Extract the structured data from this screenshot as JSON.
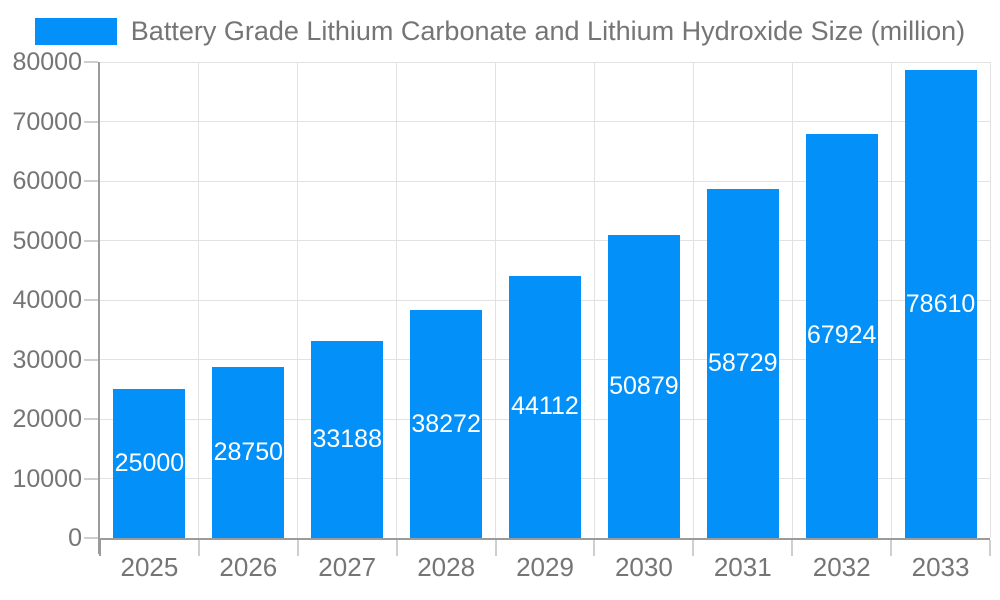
{
  "legend": {
    "label": "Battery Grade Lithium Carbonate and Lithium Hydroxide Size (million)"
  },
  "chart_data": {
    "type": "bar",
    "title": "Battery Grade Lithium Carbonate and Lithium Hydroxide Size (million)",
    "categories": [
      "2025",
      "2026",
      "2027",
      "2028",
      "2029",
      "2030",
      "2031",
      "2032",
      "2033"
    ],
    "values": [
      25000,
      28750,
      33188,
      38272,
      44112,
      50879,
      58729,
      67924,
      78610
    ],
    "bar_labels": [
      "25000",
      "28750",
      "33188",
      "38272",
      "44112",
      "50879",
      "58729",
      "67924",
      "78610"
    ],
    "xlabel": "",
    "ylabel": "",
    "ylim": [
      0,
      80000
    ],
    "yticks": [
      0,
      10000,
      20000,
      30000,
      40000,
      50000,
      60000,
      70000,
      80000
    ],
    "grid": true,
    "legend_position": "top",
    "colors": {
      "bar": "#0390f8",
      "bar_label": "#ffffff",
      "axis": "#9b9b9b",
      "grid": "#e2e2e2",
      "tick": "#cfcfcf",
      "text": "#757575"
    }
  }
}
